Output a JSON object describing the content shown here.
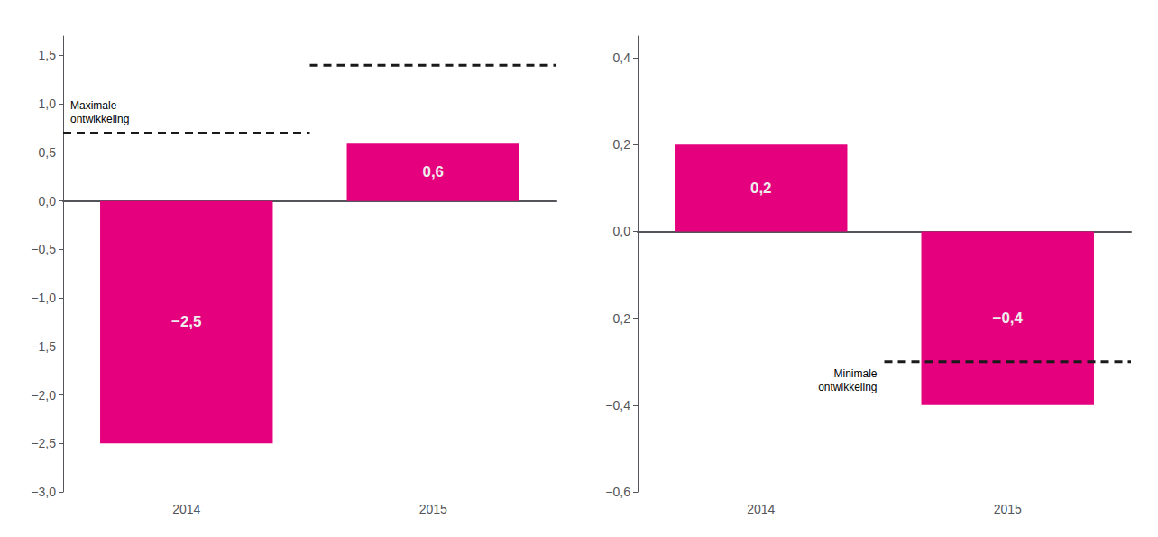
{
  "chart_data": [
    {
      "type": "bar",
      "categories": [
        "2014",
        "2015"
      ],
      "values": [
        -2.5,
        0.6
      ],
      "value_labels": [
        "−2,5",
        "0,6"
      ],
      "data_labels": true,
      "color": "#E5007D",
      "ylim": [
        -3.0,
        1.7
      ],
      "yticks": [
        {
          "value": -3.0,
          "label": "−3,0"
        },
        {
          "value": -2.5,
          "label": "−2,5"
        },
        {
          "value": -2.0,
          "label": "−2,0"
        },
        {
          "value": -1.5,
          "label": "−1,5"
        },
        {
          "value": -1.0,
          "label": "−1,0"
        },
        {
          "value": -0.5,
          "label": "−0,5"
        },
        {
          "value": 0.0,
          "label": "0,0"
        },
        {
          "value": 0.5,
          "label": "0,5"
        },
        {
          "value": 1.0,
          "label": "1,0"
        },
        {
          "value": 1.5,
          "label": "1,5"
        }
      ],
      "grid": false,
      "lines": [
        {
          "category": "2014",
          "value": 0.7,
          "line_style": "dashed",
          "color": "#1a1a1a",
          "annotation": "Maximale\nontwikkeling"
        },
        {
          "category": "2015",
          "value": 1.4,
          "line_style": "dashed",
          "color": "#1a1a1a"
        }
      ]
    },
    {
      "type": "bar",
      "categories": [
        "2014",
        "2015"
      ],
      "values": [
        0.2,
        -0.4
      ],
      "value_labels": [
        "0,2",
        "−0,4"
      ],
      "data_labels": true,
      "color": "#E5007D",
      "ylim": [
        -0.6,
        0.45
      ],
      "yticks": [
        {
          "value": -0.6,
          "label": "−0,6"
        },
        {
          "value": -0.4,
          "label": "−0,4"
        },
        {
          "value": -0.2,
          "label": "−0,2"
        },
        {
          "value": 0.0,
          "label": "0,0"
        },
        {
          "value": 0.2,
          "label": "0,2"
        },
        {
          "value": 0.4,
          "label": "0,4"
        }
      ],
      "grid": false,
      "lines": [
        {
          "category": "2015",
          "value": -0.3,
          "line_style": "dashed",
          "color": "#1a1a1a",
          "annotation": "Minimale\nontwikkeling"
        }
      ]
    }
  ]
}
